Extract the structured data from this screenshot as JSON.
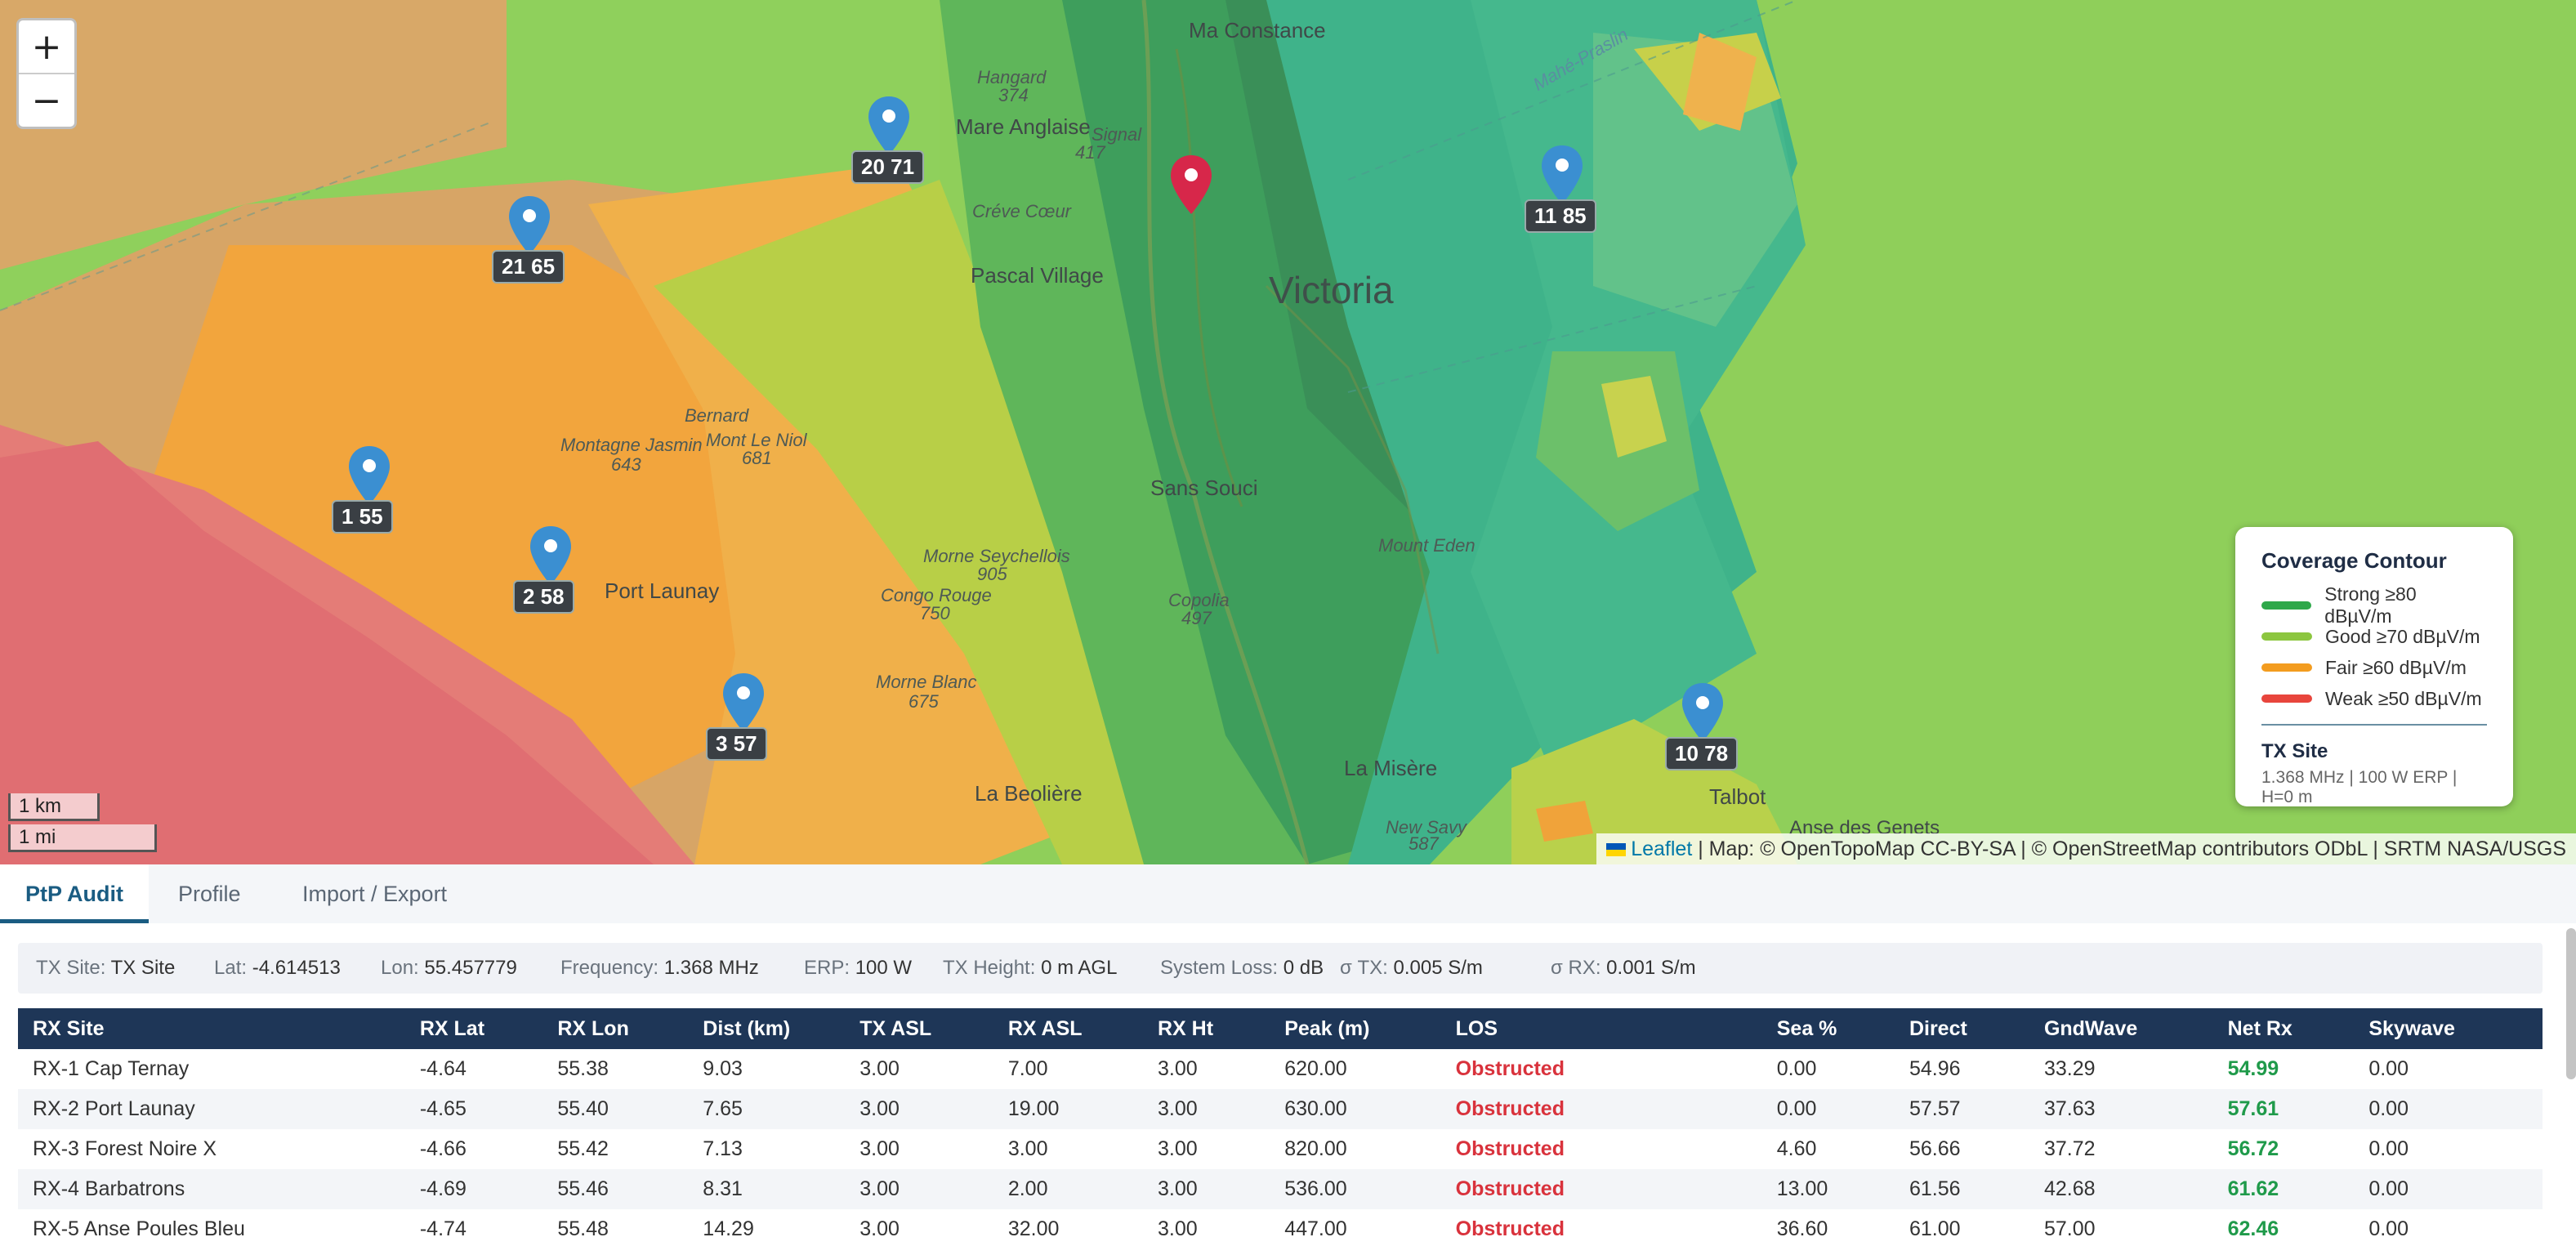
{
  "map": {
    "zoom_in": "+",
    "zoom_out": "−",
    "scale_km": "1 km",
    "scale_mi": "1 mi",
    "attribution": {
      "leaflet": "Leaflet",
      "rest": " | Map: © OpenTopoMap CC-BY-SA | © OpenStreetMap contributors ODbL | SRTM NASA/USGS"
    },
    "city": "Victoria",
    "places": [
      "Ma Constance",
      "Mare Anglaise",
      "Pascal Village",
      "Port Launay",
      "Sans Souci",
      "La Misère",
      "La Beolière",
      "Talbot",
      "Anse des Genets",
      "Mount Eden",
      "Créve Cœur",
      "Hangard",
      "374",
      "Bernard",
      "Montagne Jasmin",
      "643",
      "Mont Le Niol",
      "681",
      "Morne Seychellois",
      "905",
      "Congo Rouge",
      "750",
      "Morne Blanc",
      "675",
      "Copolia",
      "497",
      "New Savy",
      "587",
      "Signal",
      "417",
      "Mahé-Praslin"
    ],
    "markers": [
      {
        "label": "20 71"
      },
      {
        "label": "21 65"
      },
      {
        "label": "11 85"
      },
      {
        "label": "1 55"
      },
      {
        "label": "2 58"
      },
      {
        "label": "3 57"
      },
      {
        "label": "10 78"
      }
    ],
    "legend": {
      "title": "Coverage Contour",
      "items": [
        {
          "label": "Strong ≥80 dBµV/m",
          "color": "#2ea84a"
        },
        {
          "label": "Good ≥70 dBµV/m",
          "color": "#8cc63f"
        },
        {
          "label": "Fair ≥60 dBµV/m",
          "color": "#f39c1f"
        },
        {
          "label": "Weak ≥50 dBµV/m",
          "color": "#e8453c"
        }
      ],
      "tx_title": "TX Site",
      "tx_sub": "1.368 MHz | 100 W ERP | H=0 m"
    }
  },
  "tabs": [
    "PtP Audit",
    "Profile",
    "Import / Export"
  ],
  "info": [
    {
      "k": "TX Site:",
      "v": "TX Site"
    },
    {
      "k": "Lat:",
      "v": "-4.614513"
    },
    {
      "k": "Lon:",
      "v": "55.457779"
    },
    {
      "k": "Frequency:",
      "v": "1.368 MHz"
    },
    {
      "k": "ERP:",
      "v": "100 W"
    },
    {
      "k": "TX Height:",
      "v": "0 m AGL"
    },
    {
      "k": "System Loss:",
      "v": "0 dB"
    },
    {
      "k": "σ TX:",
      "v": "0.005 S/m"
    },
    {
      "k": "σ RX:",
      "v": "0.001 S/m"
    }
  ],
  "table": {
    "headers": [
      "RX Site",
      "RX Lat",
      "RX Lon",
      "Dist (km)",
      "TX ASL",
      "RX ASL",
      "RX Ht",
      "Peak (m)",
      "LOS",
      "Sea %",
      "Direct",
      "GndWave",
      "Net Rx",
      "Skywave"
    ],
    "rows": [
      [
        "RX-1 Cap Ternay",
        "-4.64",
        "55.38",
        "9.03",
        "3.00",
        "7.00",
        "3.00",
        "620.00",
        "Obstructed",
        "0.00",
        "54.96",
        "33.29",
        "54.99",
        "0.00"
      ],
      [
        "RX-2 Port Launay",
        "-4.65",
        "55.40",
        "7.65",
        "3.00",
        "19.00",
        "3.00",
        "630.00",
        "Obstructed",
        "0.00",
        "57.57",
        "37.63",
        "57.61",
        "0.00"
      ],
      [
        "RX-3 Forest Noire X",
        "-4.66",
        "55.42",
        "7.13",
        "3.00",
        "3.00",
        "3.00",
        "820.00",
        "Obstructed",
        "4.60",
        "56.66",
        "37.72",
        "56.72",
        "0.00"
      ],
      [
        "RX-4 Barbatrons",
        "-4.69",
        "55.46",
        "8.31",
        "3.00",
        "2.00",
        "3.00",
        "536.00",
        "Obstructed",
        "13.00",
        "61.56",
        "42.68",
        "61.62",
        "0.00"
      ],
      [
        "RX-5 Anse Poules Bleu",
        "-4.74",
        "55.48",
        "14.29",
        "3.00",
        "32.00",
        "3.00",
        "447.00",
        "Obstructed",
        "36.60",
        "61.00",
        "57.00",
        "62.46",
        "0.00"
      ]
    ]
  }
}
